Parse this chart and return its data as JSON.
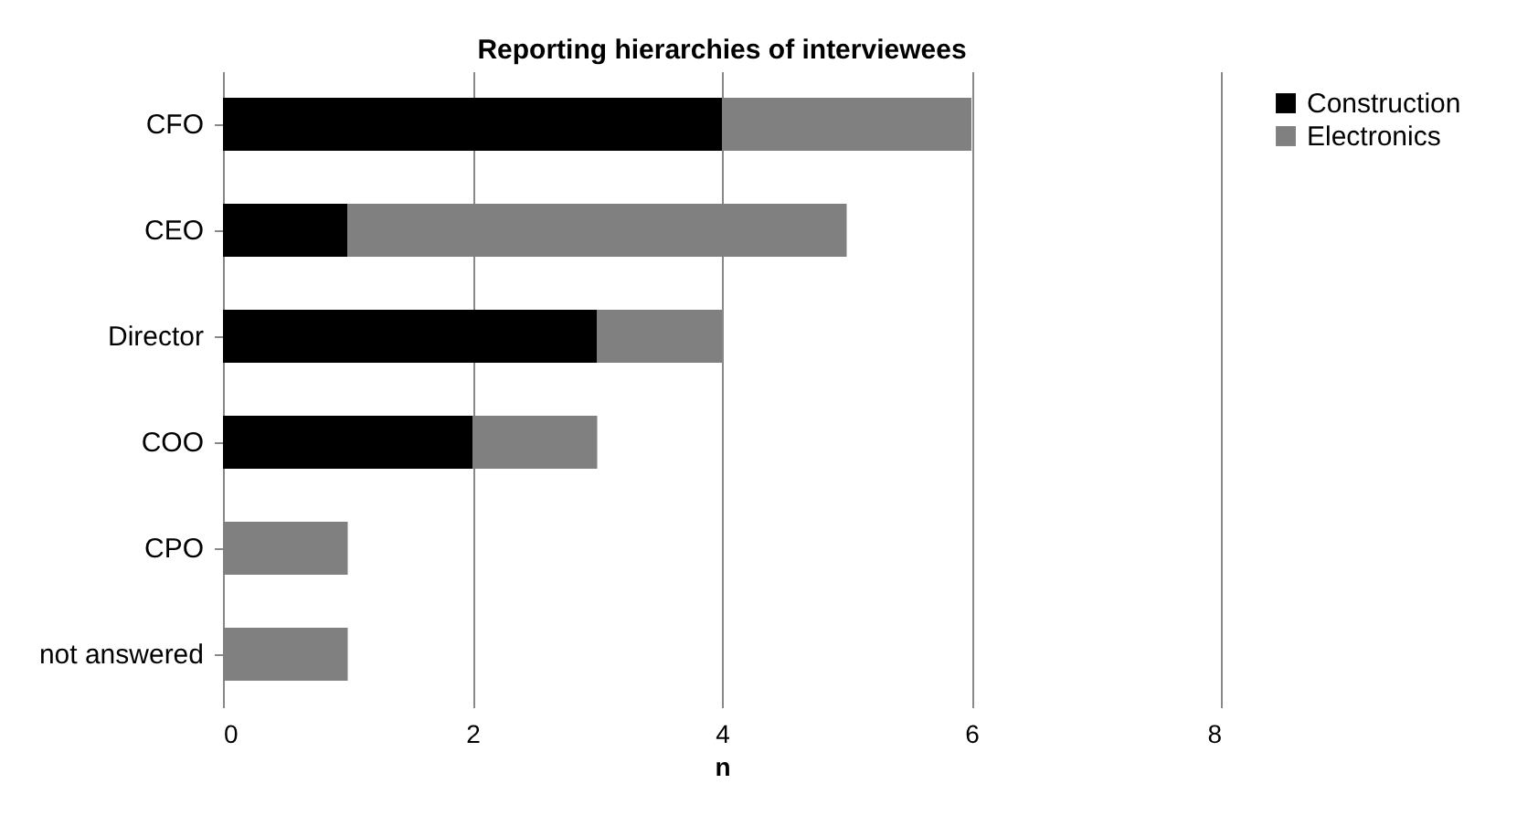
{
  "chart_data": {
    "type": "bar",
    "orientation": "horizontal",
    "stacked": true,
    "title": "Reporting hierarchies of interviewees",
    "xlabel": "n",
    "categories": [
      "CFO",
      "CEO",
      "Director",
      "COO",
      "CPO",
      "not answered"
    ],
    "series": [
      {
        "name": "Construction",
        "color": "#000000",
        "values": [
          4,
          1,
          3,
          2,
          0,
          0
        ]
      },
      {
        "name": "Electronics",
        "color": "#808080",
        "values": [
          2,
          4,
          1,
          1,
          1,
          1
        ]
      }
    ],
    "xlim": [
      0,
      8
    ],
    "xticks": [
      0,
      2,
      4,
      6,
      8
    ],
    "grid": "x",
    "legend": "right"
  }
}
